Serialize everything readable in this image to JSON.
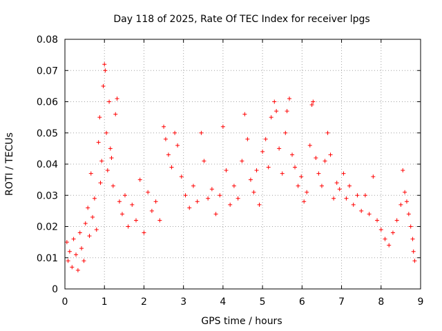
{
  "chart_data": {
    "type": "scatter",
    "title": "Day 118 of 2025, Rate Of TEC Index for receiver lpgs",
    "xlabel": "GPS time / hours",
    "ylabel": "ROTI / TECUs",
    "xlim": [
      0,
      9
    ],
    "ylim": [
      0,
      0.08
    ],
    "grid": true,
    "marker": "+",
    "color": "#ff0000",
    "xticks": [
      "0",
      "1",
      "2",
      "3",
      "4",
      "5",
      "6",
      "7",
      "8",
      "9"
    ],
    "yticks": [
      "0",
      "0.01",
      "0.02",
      "0.03",
      "0.04",
      "0.05",
      "0.06",
      "0.07",
      "0.08"
    ],
    "series": [
      {
        "name": "ROTI",
        "points": [
          [
            0.05,
            0.015
          ],
          [
            0.08,
            0.009
          ],
          [
            0.12,
            0.012
          ],
          [
            0.18,
            0.007
          ],
          [
            0.22,
            0.016
          ],
          [
            0.28,
            0.011
          ],
          [
            0.33,
            0.006
          ],
          [
            0.38,
            0.018
          ],
          [
            0.42,
            0.013
          ],
          [
            0.48,
            0.009
          ],
          [
            0.52,
            0.021
          ],
          [
            0.58,
            0.026
          ],
          [
            0.62,
            0.017
          ],
          [
            0.66,
            0.037
          ],
          [
            0.7,
            0.023
          ],
          [
            0.75,
            0.029
          ],
          [
            0.8,
            0.019
          ],
          [
            0.85,
            0.047
          ],
          [
            0.88,
            0.055
          ],
          [
            0.9,
            0.034
          ],
          [
            0.93,
            0.041
          ],
          [
            0.97,
            0.065
          ],
          [
            1.0,
            0.072
          ],
          [
            1.02,
            0.07
          ],
          [
            1.05,
            0.05
          ],
          [
            1.08,
            0.038
          ],
          [
            1.12,
            0.06
          ],
          [
            1.15,
            0.045
          ],
          [
            1.18,
            0.042
          ],
          [
            1.22,
            0.033
          ],
          [
            1.28,
            0.056
          ],
          [
            1.32,
            0.061
          ],
          [
            1.38,
            0.028
          ],
          [
            1.45,
            0.024
          ],
          [
            1.52,
            0.03
          ],
          [
            1.6,
            0.02
          ],
          [
            1.7,
            0.027
          ],
          [
            1.8,
            0.022
          ],
          [
            1.9,
            0.035
          ],
          [
            2.0,
            0.018
          ],
          [
            2.1,
            0.031
          ],
          [
            2.2,
            0.025
          ],
          [
            2.3,
            0.028
          ],
          [
            2.4,
            0.022
          ],
          [
            2.5,
            0.052
          ],
          [
            2.55,
            0.048
          ],
          [
            2.62,
            0.043
          ],
          [
            2.7,
            0.039
          ],
          [
            2.78,
            0.05
          ],
          [
            2.85,
            0.046
          ],
          [
            2.95,
            0.036
          ],
          [
            3.05,
            0.03
          ],
          [
            3.15,
            0.026
          ],
          [
            3.25,
            0.033
          ],
          [
            3.35,
            0.028
          ],
          [
            3.45,
            0.05
          ],
          [
            3.52,
            0.041
          ],
          [
            3.62,
            0.029
          ],
          [
            3.72,
            0.032
          ],
          [
            3.82,
            0.024
          ],
          [
            3.92,
            0.03
          ],
          [
            4.0,
            0.052
          ],
          [
            4.08,
            0.038
          ],
          [
            4.18,
            0.027
          ],
          [
            4.28,
            0.033
          ],
          [
            4.38,
            0.029
          ],
          [
            4.48,
            0.041
          ],
          [
            4.55,
            0.056
          ],
          [
            4.62,
            0.048
          ],
          [
            4.7,
            0.035
          ],
          [
            4.78,
            0.031
          ],
          [
            4.85,
            0.038
          ],
          [
            4.92,
            0.027
          ],
          [
            5.0,
            0.044
          ],
          [
            5.08,
            0.048
          ],
          [
            5.15,
            0.039
          ],
          [
            5.22,
            0.055
          ],
          [
            5.3,
            0.06
          ],
          [
            5.35,
            0.057
          ],
          [
            5.42,
            0.045
          ],
          [
            5.5,
            0.037
          ],
          [
            5.58,
            0.05
          ],
          [
            5.62,
            0.057
          ],
          [
            5.68,
            0.061
          ],
          [
            5.75,
            0.043
          ],
          [
            5.82,
            0.039
          ],
          [
            5.9,
            0.033
          ],
          [
            5.98,
            0.036
          ],
          [
            6.05,
            0.028
          ],
          [
            6.12,
            0.031
          ],
          [
            6.2,
            0.046
          ],
          [
            6.25,
            0.059
          ],
          [
            6.28,
            0.06
          ],
          [
            6.35,
            0.042
          ],
          [
            6.42,
            0.037
          ],
          [
            6.5,
            0.033
          ],
          [
            6.58,
            0.041
          ],
          [
            6.65,
            0.05
          ],
          [
            6.72,
            0.043
          ],
          [
            6.8,
            0.029
          ],
          [
            6.88,
            0.034
          ],
          [
            6.95,
            0.032
          ],
          [
            7.05,
            0.037
          ],
          [
            7.12,
            0.029
          ],
          [
            7.2,
            0.033
          ],
          [
            7.3,
            0.027
          ],
          [
            7.4,
            0.03
          ],
          [
            7.5,
            0.025
          ],
          [
            7.6,
            0.03
          ],
          [
            7.7,
            0.024
          ],
          [
            7.8,
            0.036
          ],
          [
            7.9,
            0.022
          ],
          [
            8.0,
            0.019
          ],
          [
            8.1,
            0.016
          ],
          [
            8.2,
            0.014
          ],
          [
            8.3,
            0.018
          ],
          [
            8.4,
            0.022
          ],
          [
            8.5,
            0.027
          ],
          [
            8.55,
            0.038
          ],
          [
            8.6,
            0.031
          ],
          [
            8.65,
            0.028
          ],
          [
            8.7,
            0.024
          ],
          [
            8.75,
            0.02
          ],
          [
            8.8,
            0.016
          ],
          [
            8.82,
            0.012
          ],
          [
            8.85,
            0.009
          ]
        ]
      }
    ]
  }
}
